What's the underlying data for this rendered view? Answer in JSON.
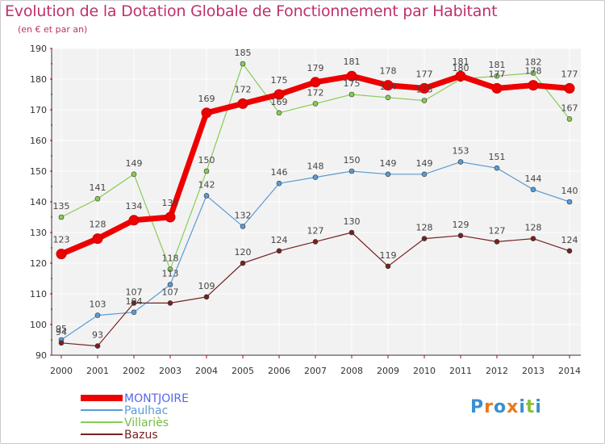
{
  "header": {
    "title": "Evolution de la Dotation Globale de Fonctionnement par Habitant",
    "subtitle": "(en € et par an)"
  },
  "logo": {
    "text": "Proxiti",
    "letters": [
      "P",
      "r",
      "o",
      "x",
      "i",
      "t",
      "i"
    ],
    "colors": [
      "#3a8fd0",
      "#e8791d",
      "#3a8fd0",
      "#e8791d",
      "#3a8fd0",
      "#8abf3a",
      "#3a8fd0"
    ]
  },
  "chart_data": {
    "type": "line",
    "title": "Evolution de la Dotation Globale de Fonctionnement par Habitant",
    "subtitle": "(en € et par an)",
    "xlabel": "",
    "ylabel": "",
    "ylim": [
      90,
      190
    ],
    "yticks": [
      90,
      100,
      110,
      120,
      130,
      140,
      150,
      160,
      170,
      180,
      190
    ],
    "grid": true,
    "legend_position": "bottom-left",
    "x": [
      "2000",
      "2001",
      "2002",
      "2003",
      "2004",
      "2005",
      "2006",
      "2007",
      "2008",
      "2009",
      "2010",
      "2011",
      "2012",
      "2013",
      "2014"
    ],
    "series": [
      {
        "name": "MONTJOIRE",
        "color": "#ee0000",
        "legend_text_color": "#5566ee",
        "width": 7,
        "marker": 6,
        "label_offset": -14,
        "values": [
          123,
          128,
          134,
          135,
          169,
          172,
          175,
          179,
          181,
          178,
          177,
          181,
          177,
          178,
          177
        ]
      },
      {
        "name": "Paulhac",
        "color": "#5b9bd5",
        "legend_text_color": "#5b9bd5",
        "width": 1.2,
        "marker": 3,
        "label_offset": -10,
        "values": [
          95,
          103,
          104,
          113,
          142,
          132,
          146,
          148,
          150,
          149,
          149,
          153,
          151,
          144,
          140
        ]
      },
      {
        "name": "Villariès",
        "color": "#88cc55",
        "legend_text_color": "#77bb44",
        "width": 1.2,
        "marker": 3,
        "label_offset": -10,
        "values": [
          135,
          141,
          149,
          118,
          150,
          185,
          169,
          172,
          175,
          174,
          173,
          180,
          181,
          182,
          167
        ]
      },
      {
        "name": "Bazus",
        "color": "#772222",
        "legend_text_color": "#772222",
        "width": 1.2,
        "marker": 3,
        "label_offset": -10,
        "values": [
          94,
          93,
          107,
          107,
          109,
          120,
          124,
          127,
          130,
          119,
          128,
          129,
          127,
          128,
          124
        ]
      }
    ]
  }
}
